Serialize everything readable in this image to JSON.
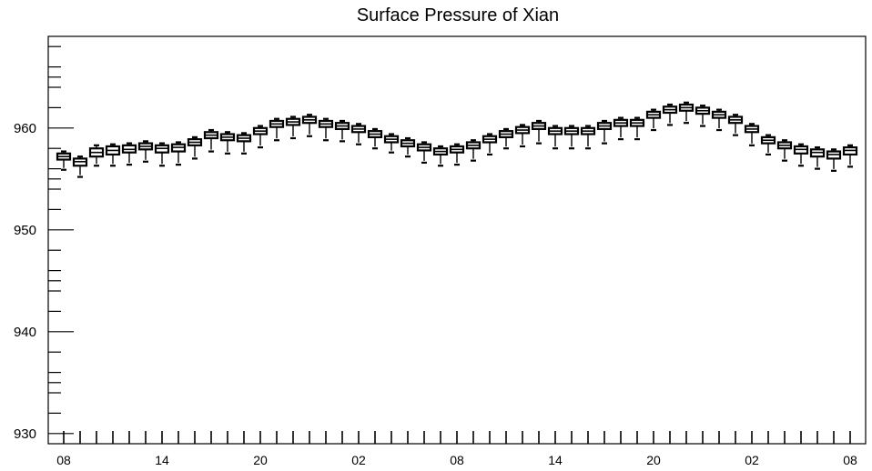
{
  "chart_data": {
    "type": "boxplot",
    "title": "Surface Pressure of Xian",
    "xlabel": "",
    "ylabel": "",
    "ylim": [
      929,
      969
    ],
    "yticks": [
      930,
      940,
      950,
      960
    ],
    "xtick_labels": [
      "08",
      "14",
      "20",
      "02",
      "08",
      "14",
      "20",
      "02",
      "08"
    ],
    "x_interval_hours": 1,
    "series": [
      {
        "median": [
          957.2,
          956.7,
          957.6,
          957.8,
          957.9,
          958.2,
          958.0,
          958.1,
          958.6,
          959.3,
          959.1,
          959.0,
          959.7,
          960.4,
          960.6,
          960.8,
          960.4,
          960.2,
          959.9,
          959.4,
          958.9,
          958.5,
          958.1,
          957.7,
          957.9,
          958.3,
          958.9,
          959.4,
          959.8,
          960.2,
          959.7,
          959.7,
          959.7,
          960.2,
          960.5,
          960.5,
          961.3,
          961.8,
          962.0,
          961.7,
          961.3,
          960.8,
          959.9,
          958.8,
          958.3,
          957.9,
          957.6,
          957.4,
          957.8
        ],
        "q1": [
          956.9,
          956.3,
          957.2,
          957.4,
          957.6,
          957.9,
          957.6,
          957.7,
          958.3,
          959.0,
          958.8,
          958.7,
          959.4,
          960.1,
          960.3,
          960.5,
          960.1,
          959.9,
          959.6,
          959.1,
          958.6,
          958.2,
          957.8,
          957.4,
          957.6,
          958.0,
          958.6,
          959.1,
          959.5,
          959.9,
          959.4,
          959.4,
          959.4,
          959.9,
          960.2,
          960.2,
          961.0,
          961.5,
          961.7,
          961.4,
          961.0,
          960.5,
          959.6,
          958.5,
          958.0,
          957.5,
          957.2,
          957.0,
          957.4
        ],
        "q3": [
          957.5,
          957.0,
          958.0,
          958.2,
          958.3,
          958.5,
          958.3,
          958.4,
          958.9,
          959.6,
          959.4,
          959.3,
          960.0,
          960.7,
          960.9,
          961.1,
          960.7,
          960.5,
          960.2,
          959.7,
          959.2,
          958.8,
          958.4,
          958.0,
          958.2,
          958.6,
          959.2,
          959.7,
          960.1,
          960.5,
          960.0,
          960.0,
          960.0,
          960.5,
          960.8,
          960.8,
          961.6,
          962.1,
          962.3,
          962.0,
          961.6,
          961.1,
          960.2,
          959.1,
          958.6,
          958.2,
          957.9,
          957.7,
          958.1
        ],
        "min": [
          955.9,
          955.2,
          956.3,
          956.3,
          956.4,
          956.7,
          956.3,
          956.4,
          957.0,
          957.7,
          957.5,
          957.5,
          958.1,
          958.8,
          959.0,
          959.2,
          958.8,
          958.7,
          958.4,
          958.0,
          957.6,
          957.2,
          956.6,
          956.3,
          956.4,
          956.8,
          957.4,
          958.0,
          958.2,
          958.5,
          958.0,
          958.0,
          958.0,
          958.5,
          958.9,
          958.9,
          959.8,
          960.3,
          960.5,
          960.2,
          959.8,
          959.3,
          958.3,
          957.4,
          956.8,
          956.3,
          956.0,
          955.8,
          956.2
        ],
        "max": [
          957.7,
          957.2,
          958.3,
          958.4,
          958.5,
          958.7,
          958.5,
          958.6,
          959.1,
          959.8,
          959.6,
          959.5,
          960.2,
          960.9,
          961.1,
          961.3,
          960.9,
          960.7,
          960.4,
          959.9,
          959.4,
          959.0,
          958.6,
          958.2,
          958.4,
          958.8,
          959.4,
          959.9,
          960.3,
          960.7,
          960.2,
          960.2,
          960.2,
          960.7,
          961.0,
          961.0,
          961.8,
          962.3,
          962.5,
          962.2,
          961.8,
          961.3,
          960.4,
          959.3,
          958.8,
          958.4,
          958.1,
          957.9,
          958.3
        ]
      }
    ]
  }
}
